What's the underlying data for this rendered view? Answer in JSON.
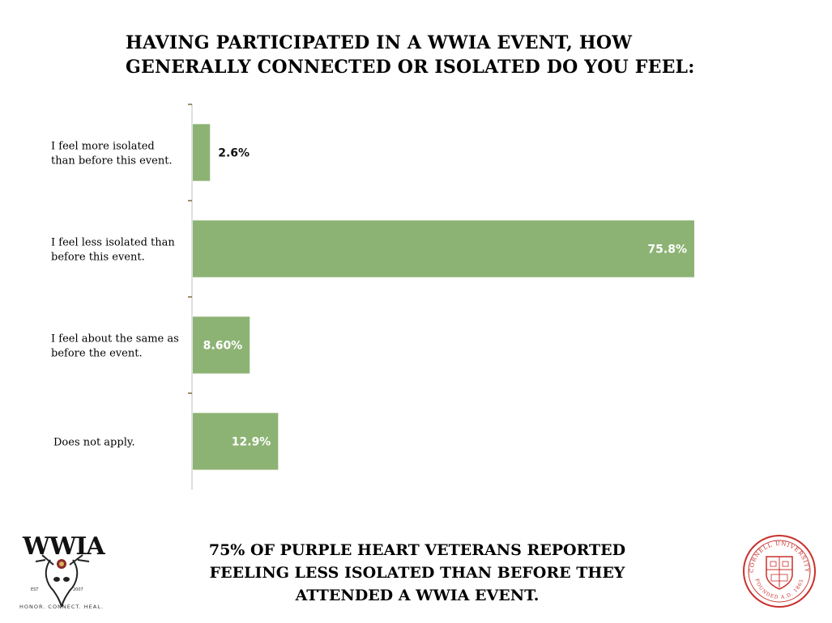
{
  "title": "Having participated in a WWIA event, how generally connected or isolated do you feel:",
  "footer_text": "75% of Purple Heart Veterans reported feeling less isolated than before they attended a WWIA event.",
  "logo_left": {
    "letters": "WWIA",
    "tagline": "HONOR. CONNECT. HEAL.",
    "est": "EST",
    "year": "2007"
  },
  "logo_right": {
    "arc_text": "CORNELL UNIVERSITY",
    "founded_text": "FOUNDED A.D. 1865"
  },
  "colors": {
    "bar": "#8db374",
    "axis": "#bfbfbf",
    "tick": "#7a6a3a"
  },
  "chart_data": {
    "type": "bar",
    "orientation": "horizontal",
    "categories": [
      [
        "I feel more isolated",
        "than before this event."
      ],
      [
        "I feel less isolated than",
        "before this event."
      ],
      [
        "I feel about the same as",
        "before the event."
      ],
      [
        "Does not apply."
      ]
    ],
    "values": [
      2.6,
      75.8,
      8.6,
      12.9
    ],
    "value_labels": [
      "2.6%",
      "75.8%",
      "8.60%",
      "12.9%"
    ],
    "xlim": [
      0,
      100
    ],
    "grid": false,
    "legend": "none"
  }
}
